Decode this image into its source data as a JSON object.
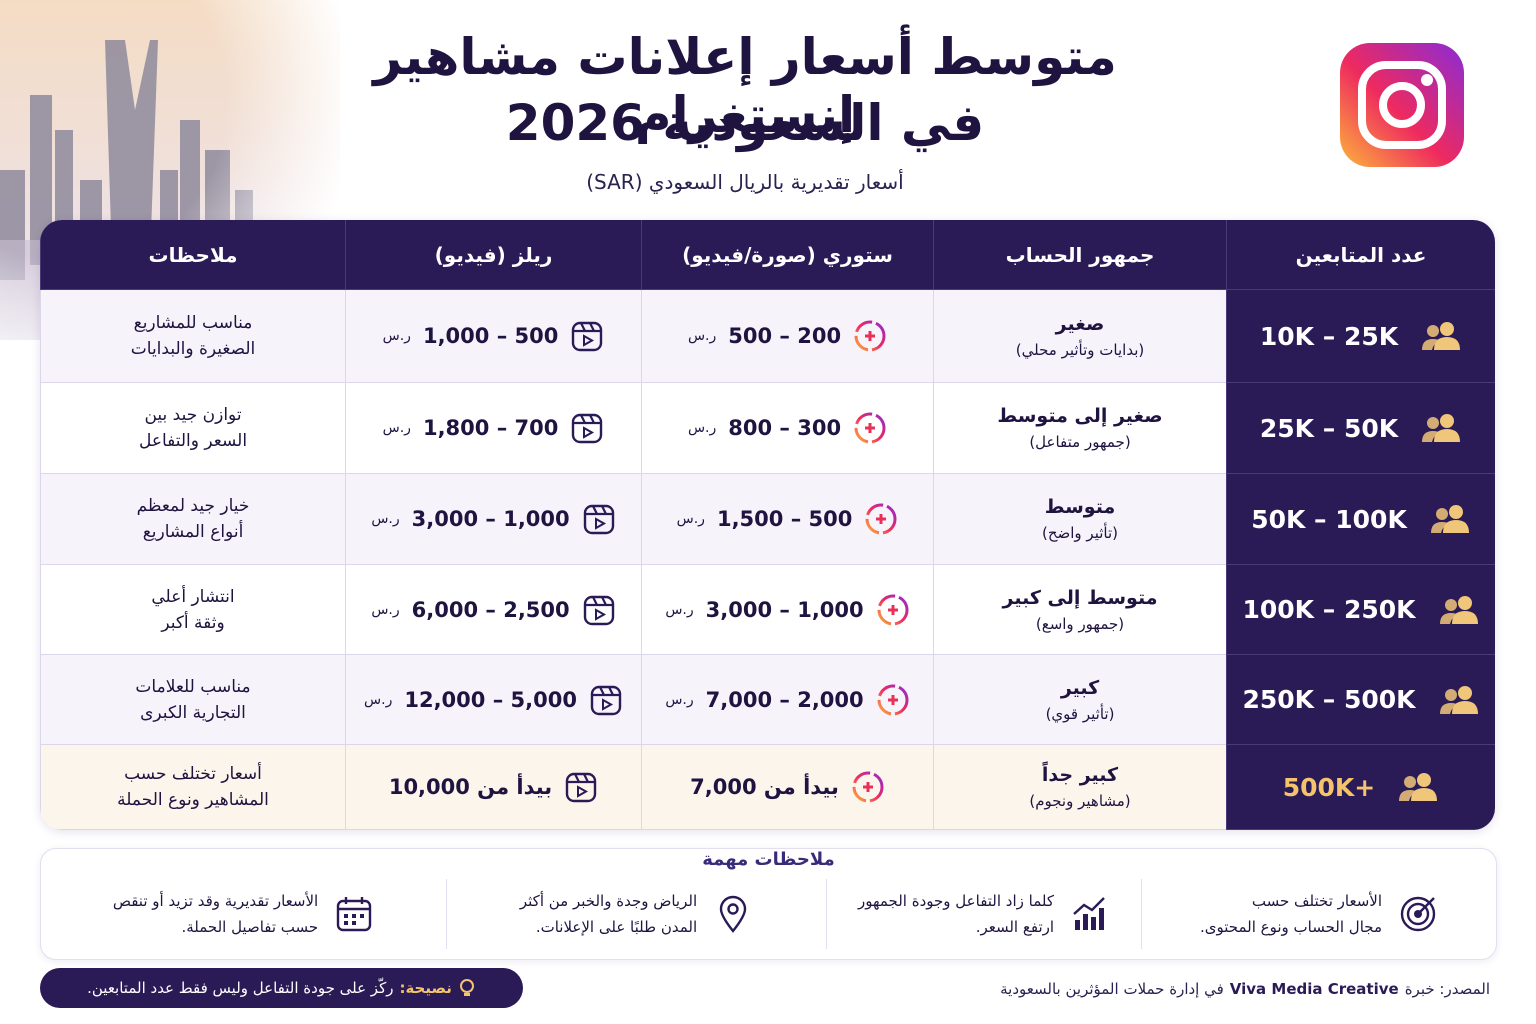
{
  "header": {
    "title_line1": "متوسط أسعار إعلانات مشاهير إنستغرام",
    "title_line2": "في السعودية 2026",
    "subtitle": "أسعار تقديرية بالريال السعودي (SAR)"
  },
  "table": {
    "headers": [
      "عدد المتابعين",
      "جمهور الحساب",
      "ستوري (صورة/فيديو)",
      "ريلز (فيديو)",
      "ملاحظات"
    ],
    "rows": [
      {
        "followers": "10K – 25K",
        "audience": "صغير",
        "audience_note": "(بدايات وتأثير محلي)",
        "story": "200 – 500",
        "story_currency": "ر.س",
        "reels": "500 – 1,000",
        "reels_currency": "ر.س",
        "notes": [
          "مناسب للمشاريع",
          "الصغيرة والبدايات"
        ]
      },
      {
        "followers": "25K – 50K",
        "audience": "صغير إلى متوسط",
        "audience_note": "(جمهور متفاعل)",
        "story": "300 – 800",
        "story_currency": "ر.س",
        "reels": "700 – 1,800",
        "reels_currency": "ر.س",
        "notes": [
          "توازن جيد بين",
          "السعر والتفاعل"
        ]
      },
      {
        "followers": "50K – 100K",
        "audience": "متوسط",
        "audience_note": "(تأثير واضح)",
        "story": "500 – 1,500",
        "story_currency": "ر.س",
        "reels": "1,000 – 3,000",
        "reels_currency": "ر.س",
        "notes": [
          "خيار جيد لمعظم",
          "أنواع المشاريع"
        ]
      },
      {
        "followers": "100K – 250K",
        "audience": "متوسط إلى كبير",
        "audience_note": "(جمهور واسع)",
        "story": "1,000 – 3,000",
        "story_currency": "ر.س",
        "reels": "2,500 – 6,000",
        "reels_currency": "ر.س",
        "notes": [
          "انتشار أعلي",
          "وثقة أكبر"
        ]
      },
      {
        "followers": "250K – 500K",
        "audience": "كبير",
        "audience_note": "(تأثير قوي)",
        "story": "2,000 – 7,000",
        "story_currency": "ر.س",
        "reels": "5,000 – 12,000",
        "reels_currency": "ر.س",
        "notes": [
          "مناسب للعلامات",
          "التجارية الكبرى"
        ]
      },
      {
        "followers": "500K+",
        "audience": "كبير جداً",
        "audience_note": "(مشاهير ونجوم)",
        "story": "بيدأ من 7,000",
        "reels": "بيدأ من 10,000",
        "notes": [
          "أسعار تختلف حسب",
          "المشاهير ونوع الحملة"
        ]
      }
    ]
  },
  "important_notes": {
    "title": "ملاحظات مهمة",
    "items": [
      [
        "الأسعار تختلف حسب",
        "مجال الحساب ونوع المحتوى."
      ],
      [
        "كلما زاد التفاعل وجودة الجمهور",
        "ارتفع السعر."
      ],
      [
        "الرياض وجدة والخبر من أكثر",
        "المدن طلبًا على الإعلانات."
      ],
      [
        "الأسعار تقديرية وقد تزيد أو تنقص",
        "حسب تفاصيل الحملة."
      ]
    ]
  },
  "tip": {
    "label": "نصيحة:",
    "text": "ركّز على جودة التفاعل وليس فقط عدد المتابعين."
  },
  "source": {
    "prefix": "المصدر: خبرة",
    "brand": "Viva Media Creative",
    "suffix": "في إدارة حملات المؤثرين بالسعودية"
  }
}
